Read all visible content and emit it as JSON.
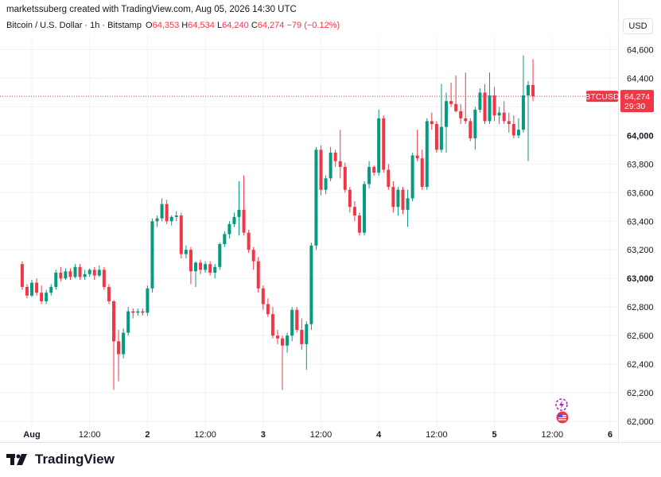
{
  "header": {
    "attribution": "marketssuberg created with TradingView.com, Aug 05, 2026 14:30 UTC"
  },
  "legend": {
    "symbol": "Bitcoin / U.S. Dollar · 1h · Bitstamp",
    "o_label": "O",
    "o_value": "64,353",
    "h_label": "H",
    "h_value": "64,534",
    "l_label": "L",
    "l_value": "64,240",
    "c_label": "C",
    "c_value": "64,274",
    "change": "−79 (−0.12%)"
  },
  "currency_button": "USD",
  "price_tag": {
    "symbol": "BTCUSD",
    "price": "64,274",
    "countdown": "29:30"
  },
  "brand": {
    "name": "TradingView"
  },
  "colors": {
    "up": "#089981",
    "down": "#f23645",
    "grid": "#f0f3fa",
    "axis_text": "#131722"
  },
  "icons": {
    "event1": "lightning-bolt-icon",
    "event2": "us-flag-icon"
  },
  "chart_data": {
    "type": "candlestick",
    "title": "Bitcoin / U.S. Dollar · 1h · Bitstamp",
    "ylim": [
      62000,
      64700
    ],
    "y_ticks": [
      "62,000",
      "62,200",
      "62,400",
      "62,600",
      "62,800",
      "63,000",
      "63,200",
      "63,400",
      "63,600",
      "63,800",
      "64,000",
      "64,200",
      "64,400",
      "64,600"
    ],
    "y_ticks_values": [
      62000,
      62200,
      62400,
      62600,
      62800,
      63000,
      63200,
      63400,
      63600,
      63800,
      64000,
      64200,
      64400,
      64600
    ],
    "y_bold": [
      "63,000",
      "64,000"
    ],
    "x_ticks": [
      "Aug",
      "12:00",
      "2",
      "12:00",
      "3",
      "12:00",
      "4",
      "12:00",
      "5",
      "12:00",
      "6"
    ],
    "x_ticks_bold": [
      "Aug",
      "2",
      "3",
      "4",
      "5",
      "6"
    ],
    "x_ticks_hours": [
      0,
      12,
      24,
      36,
      48,
      60,
      72,
      84,
      96,
      108,
      120
    ],
    "first_candle_hour": -2,
    "last_price": 64274,
    "candles": [
      [
        63100,
        63120,
        62920,
        62940
      ],
      [
        62940,
        62960,
        62860,
        62880
      ],
      [
        62880,
        62990,
        62870,
        62970
      ],
      [
        62970,
        63000,
        62880,
        62900
      ],
      [
        62900,
        62950,
        62820,
        62840
      ],
      [
        62840,
        62920,
        62820,
        62900
      ],
      [
        62900,
        62960,
        62880,
        62940
      ],
      [
        62940,
        63060,
        62920,
        63040
      ],
      [
        63040,
        63080,
        62980,
        63000
      ],
      [
        63000,
        63070,
        62990,
        63050
      ],
      [
        63050,
        63070,
        62990,
        63010
      ],
      [
        63010,
        63100,
        63000,
        63080
      ],
      [
        63080,
        63100,
        62990,
        63010
      ],
      [
        63010,
        63060,
        62990,
        63030
      ],
      [
        63030,
        63070,
        63010,
        63060
      ],
      [
        63060,
        63080,
        62990,
        63020
      ],
      [
        63020,
        63090,
        63010,
        63060
      ],
      [
        63060,
        63080,
        62920,
        62940
      ],
      [
        62940,
        62960,
        62820,
        62840
      ],
      [
        62840,
        62850,
        62220,
        62560
      ],
      [
        62560,
        62640,
        62280,
        62470
      ],
      [
        62470,
        62650,
        62440,
        62620
      ],
      [
        62620,
        62800,
        62600,
        62770
      ],
      [
        62770,
        62790,
        62720,
        62760
      ],
      [
        62760,
        62790,
        62740,
        62770
      ],
      [
        62770,
        62790,
        62740,
        62760
      ],
      [
        62760,
        62950,
        62740,
        62930
      ],
      [
        62930,
        63420,
        62900,
        63400
      ],
      [
        63400,
        63440,
        63360,
        63420
      ],
      [
        63420,
        63560,
        63400,
        63520
      ],
      [
        63520,
        63550,
        63380,
        63400
      ],
      [
        63400,
        63440,
        63370,
        63430
      ],
      [
        63430,
        63470,
        63400,
        63440
      ],
      [
        63440,
        63460,
        63140,
        63170
      ],
      [
        63170,
        63230,
        63140,
        63200
      ],
      [
        63200,
        63220,
        62960,
        63050
      ],
      [
        63050,
        63120,
        62940,
        63110
      ],
      [
        63110,
        63130,
        63030,
        63060
      ],
      [
        63060,
        63120,
        63040,
        63100
      ],
      [
        63100,
        63120,
        63020,
        63040
      ],
      [
        63040,
        63100,
        63000,
        63080
      ],
      [
        63080,
        63250,
        63060,
        63240
      ],
      [
        63240,
        63330,
        63220,
        63310
      ],
      [
        63310,
        63400,
        63280,
        63380
      ],
      [
        63380,
        63460,
        63360,
        63430
      ],
      [
        63430,
        63680,
        63300,
        63480
      ],
      [
        63480,
        63720,
        63300,
        63320
      ],
      [
        63320,
        63340,
        63180,
        63200
      ],
      [
        63200,
        63220,
        63060,
        63120
      ],
      [
        63120,
        63150,
        62900,
        62930
      ],
      [
        62930,
        62950,
        62780,
        62820
      ],
      [
        62820,
        62860,
        62730,
        62750
      ],
      [
        62750,
        62800,
        62580,
        62600
      ],
      [
        62600,
        62640,
        62540,
        62580
      ],
      [
        62580,
        62600,
        62220,
        62530
      ],
      [
        62530,
        62620,
        62480,
        62600
      ],
      [
        62600,
        62800,
        62560,
        62780
      ],
      [
        62780,
        62800,
        62620,
        62640
      ],
      [
        62640,
        62720,
        62500,
        62540
      ],
      [
        62540,
        62700,
        62360,
        62680
      ],
      [
        62680,
        63250,
        62640,
        63230
      ],
      [
        63230,
        63920,
        63200,
        63900
      ],
      [
        63900,
        63930,
        63580,
        63620
      ],
      [
        63620,
        63720,
        63590,
        63700
      ],
      [
        63700,
        63920,
        63680,
        63880
      ],
      [
        63880,
        63900,
        63780,
        63820
      ],
      [
        63820,
        64040,
        63700,
        63780
      ],
      [
        63780,
        63810,
        63600,
        63620
      ],
      [
        63620,
        63640,
        63460,
        63500
      ],
      [
        63500,
        63540,
        63400,
        63440
      ],
      [
        63440,
        63460,
        63300,
        63320
      ],
      [
        63320,
        63680,
        63300,
        63660
      ],
      [
        63660,
        63820,
        63630,
        63780
      ],
      [
        63780,
        63790,
        63720,
        63740
      ],
      [
        63740,
        64180,
        63720,
        64120
      ],
      [
        64120,
        64140,
        63740,
        63760
      ],
      [
        63760,
        63800,
        63620,
        63640
      ],
      [
        63640,
        63680,
        63460,
        63500
      ],
      [
        63500,
        63640,
        63440,
        63620
      ],
      [
        63620,
        63640,
        63450,
        63480
      ],
      [
        63480,
        63620,
        63360,
        63560
      ],
      [
        63560,
        63880,
        63540,
        63860
      ],
      [
        63860,
        64040,
        63820,
        63840
      ],
      [
        63840,
        63900,
        63620,
        63640
      ],
      [
        63640,
        64120,
        63620,
        64100
      ],
      [
        64100,
        64160,
        64040,
        64080
      ],
      [
        64080,
        64100,
        63880,
        63900
      ],
      [
        63900,
        64360,
        63880,
        64060
      ],
      [
        64060,
        64300,
        63880,
        64240
      ],
      [
        64240,
        64370,
        64200,
        64220
      ],
      [
        64220,
        64420,
        64160,
        64170
      ],
      [
        64170,
        64220,
        64080,
        64120
      ],
      [
        64120,
        64440,
        64080,
        64100
      ],
      [
        64100,
        64120,
        63960,
        63980
      ],
      [
        63980,
        64200,
        63900,
        64180
      ],
      [
        64180,
        64330,
        64160,
        64300
      ],
      [
        64300,
        64360,
        64080,
        64100
      ],
      [
        64100,
        64440,
        64080,
        64280
      ],
      [
        64280,
        64340,
        64100,
        64140
      ],
      [
        64140,
        64200,
        64080,
        64160
      ],
      [
        64160,
        64240,
        64080,
        64100
      ],
      [
        64100,
        64160,
        64020,
        64080
      ],
      [
        64080,
        64140,
        63980,
        64000
      ],
      [
        64000,
        64120,
        63980,
        64040
      ],
      [
        64040,
        64560,
        64020,
        64280
      ],
      [
        64280,
        64380,
        63820,
        64353
      ],
      [
        64353,
        64534,
        64240,
        64274
      ]
    ]
  }
}
